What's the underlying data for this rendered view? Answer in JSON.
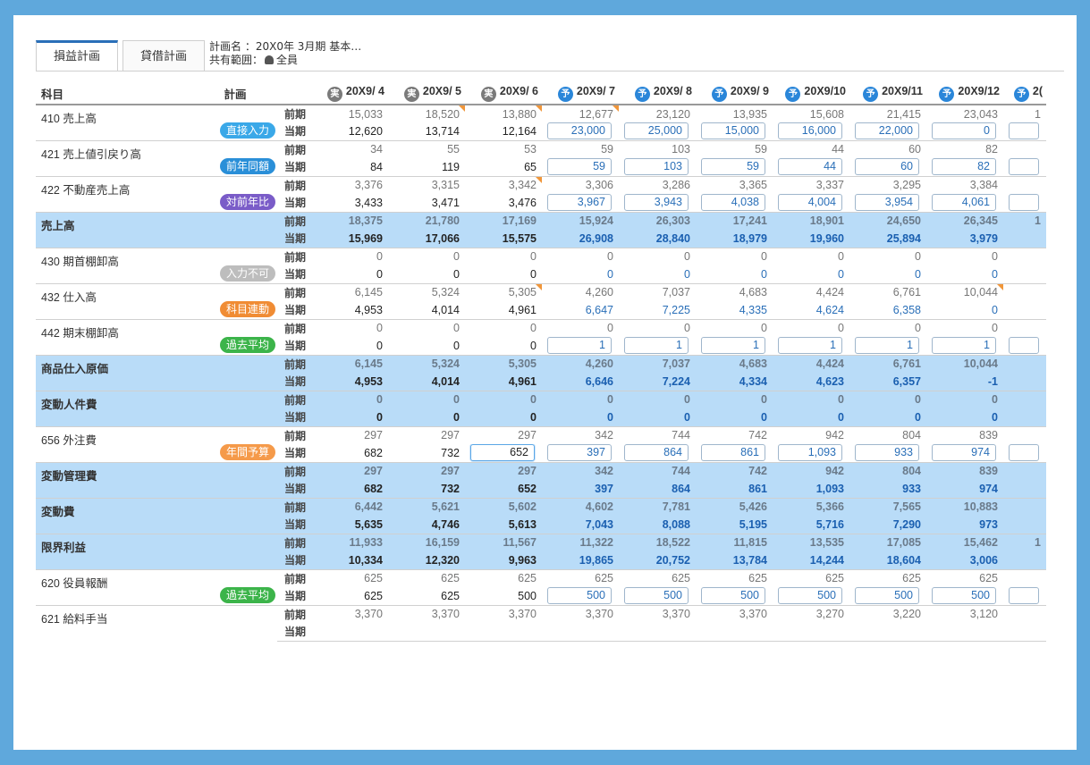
{
  "tabs": [
    {
      "label": "損益計画",
      "active": true
    },
    {
      "label": "貸借計画",
      "active": false
    }
  ],
  "plan": {
    "name_label": "計画名",
    "name_value": "：20X0年 3月期 基本…",
    "scope_label": "共有範囲：",
    "scope_value": "全員"
  },
  "headers": {
    "subject": "科目",
    "plan": "計画",
    "months": [
      {
        "badge": "実",
        "label": "20X9/ 4",
        "type": "actual"
      },
      {
        "badge": "実",
        "label": "20X9/ 5",
        "type": "actual"
      },
      {
        "badge": "実",
        "label": "20X9/ 6",
        "type": "actual"
      },
      {
        "badge": "予",
        "label": "20X9/ 7",
        "type": "forecast"
      },
      {
        "badge": "予",
        "label": "20X9/ 8",
        "type": "forecast"
      },
      {
        "badge": "予",
        "label": "20X9/ 9",
        "type": "forecast"
      },
      {
        "badge": "予",
        "label": "20X9/10",
        "type": "forecast"
      },
      {
        "badge": "予",
        "label": "20X9/11",
        "type": "forecast"
      },
      {
        "badge": "予",
        "label": "20X9/12",
        "type": "forecast"
      },
      {
        "badge": "予",
        "label": "2(",
        "type": "forecast"
      }
    ]
  },
  "periods": {
    "prev": "前期",
    "cur": "当期"
  },
  "colors": {
    "direct": "#3aa8e8",
    "prevyear": "#2a8fd8",
    "yoy": "#7a5cc8",
    "disabled": "#bdbdbd",
    "linked": "#f08c34",
    "avg": "#3cb44a",
    "annual": "#f59a4a"
  },
  "rows": [
    {
      "subject": "410 売上高",
      "pill": "直接入力",
      "pill_color": "direct",
      "sum": false,
      "prev": [
        "15,033",
        "18,520",
        "13,880",
        "12,677",
        "23,120",
        "13,935",
        "15,608",
        "21,415",
        "23,043",
        "1"
      ],
      "cur": [
        "12,620",
        "13,714",
        "12,164",
        "23,000",
        "25,000",
        "15,000",
        "16,000",
        "22,000",
        "0",
        ""
      ],
      "inputs": true,
      "prev_flags": [
        1,
        2,
        3
      ],
      "cur_flags": []
    },
    {
      "subject": "421 売上値引戻り高",
      "pill": "前年同額",
      "pill_color": "prevyear",
      "sum": false,
      "prev": [
        "34",
        "55",
        "53",
        "59",
        "103",
        "59",
        "44",
        "60",
        "82",
        ""
      ],
      "cur": [
        "84",
        "119",
        "65",
        "59",
        "103",
        "59",
        "44",
        "60",
        "82",
        ""
      ],
      "inputs": true,
      "prev_flags": [],
      "cur_flags": []
    },
    {
      "subject": "422 不動産売上高",
      "pill": "対前年比",
      "pill_color": "yoy",
      "sum": false,
      "prev": [
        "3,376",
        "3,315",
        "3,342",
        "3,306",
        "3,286",
        "3,365",
        "3,337",
        "3,295",
        "3,384",
        ""
      ],
      "cur": [
        "3,433",
        "3,471",
        "3,476",
        "3,967",
        "3,943",
        "4,038",
        "4,004",
        "3,954",
        "4,061",
        ""
      ],
      "inputs": true,
      "prev_flags": [
        2
      ],
      "cur_flags": []
    },
    {
      "subject": "売上高",
      "pill": "",
      "pill_color": "",
      "sum": true,
      "prev": [
        "18,375",
        "21,780",
        "17,169",
        "15,924",
        "26,303",
        "17,241",
        "18,901",
        "24,650",
        "26,345",
        "1"
      ],
      "cur": [
        "15,969",
        "17,066",
        "15,575",
        "26,908",
        "28,840",
        "18,979",
        "19,960",
        "25,894",
        "3,979",
        ""
      ],
      "inputs": false,
      "prev_flags": [],
      "cur_flags": []
    },
    {
      "subject": "430 期首棚卸高",
      "pill": "入力不可",
      "pill_color": "disabled",
      "sum": false,
      "prev": [
        "0",
        "0",
        "0",
        "0",
        "0",
        "0",
        "0",
        "0",
        "0",
        ""
      ],
      "cur": [
        "0",
        "0",
        "0",
        "0",
        "0",
        "0",
        "0",
        "0",
        "0",
        ""
      ],
      "inputs": false,
      "prev_flags": [],
      "cur_flags": []
    },
    {
      "subject": "432 仕入高",
      "pill": "科目連動",
      "pill_color": "linked",
      "sum": false,
      "prev": [
        "6,145",
        "5,324",
        "5,305",
        "4,260",
        "7,037",
        "4,683",
        "4,424",
        "6,761",
        "10,044",
        ""
      ],
      "cur": [
        "4,953",
        "4,014",
        "4,961",
        "6,647",
        "7,225",
        "4,335",
        "4,624",
        "6,358",
        "0",
        ""
      ],
      "inputs": false,
      "prev_flags": [
        2,
        8
      ],
      "cur_flags": []
    },
    {
      "subject": "442 期末棚卸高",
      "pill": "過去平均",
      "pill_color": "avg",
      "sum": false,
      "prev": [
        "0",
        "0",
        "0",
        "0",
        "0",
        "0",
        "0",
        "0",
        "0",
        ""
      ],
      "cur": [
        "0",
        "0",
        "0",
        "1",
        "1",
        "1",
        "1",
        "1",
        "1",
        ""
      ],
      "inputs": true,
      "prev_flags": [],
      "cur_flags": []
    },
    {
      "subject": "商品仕入原価",
      "pill": "",
      "pill_color": "",
      "sum": true,
      "prev": [
        "6,145",
        "5,324",
        "5,305",
        "4,260",
        "7,037",
        "4,683",
        "4,424",
        "6,761",
        "10,044",
        ""
      ],
      "cur": [
        "4,953",
        "4,014",
        "4,961",
        "6,646",
        "7,224",
        "4,334",
        "4,623",
        "6,357",
        "-1",
        ""
      ],
      "inputs": false,
      "prev_flags": [],
      "cur_flags": []
    },
    {
      "subject": "変動人件費",
      "pill": "",
      "pill_color": "",
      "sum": true,
      "prev": [
        "0",
        "0",
        "0",
        "0",
        "0",
        "0",
        "0",
        "0",
        "0",
        ""
      ],
      "cur": [
        "0",
        "0",
        "0",
        "0",
        "0",
        "0",
        "0",
        "0",
        "0",
        ""
      ],
      "inputs": false,
      "prev_flags": [],
      "cur_flags": []
    },
    {
      "subject": "656 外注費",
      "pill": "年間予算",
      "pill_color": "annual",
      "sum": false,
      "prev": [
        "297",
        "297",
        "297",
        "342",
        "744",
        "742",
        "942",
        "804",
        "839",
        ""
      ],
      "cur": [
        "682",
        "732",
        "652",
        "397",
        "864",
        "861",
        "1,093",
        "933",
        "974",
        ""
      ],
      "inputs": true,
      "selected": 2,
      "prev_flags": [],
      "cur_flags": []
    },
    {
      "subject": "変動管理費",
      "pill": "",
      "pill_color": "",
      "sum": true,
      "prev": [
        "297",
        "297",
        "297",
        "342",
        "744",
        "742",
        "942",
        "804",
        "839",
        ""
      ],
      "cur": [
        "682",
        "732",
        "652",
        "397",
        "864",
        "861",
        "1,093",
        "933",
        "974",
        ""
      ],
      "inputs": false,
      "prev_flags": [],
      "cur_flags": []
    },
    {
      "subject": "変動費",
      "pill": "",
      "pill_color": "",
      "sum": true,
      "prev": [
        "6,442",
        "5,621",
        "5,602",
        "4,602",
        "7,781",
        "5,426",
        "5,366",
        "7,565",
        "10,883",
        ""
      ],
      "cur": [
        "5,635",
        "4,746",
        "5,613",
        "7,043",
        "8,088",
        "5,195",
        "5,716",
        "7,290",
        "973",
        ""
      ],
      "inputs": false,
      "prev_flags": [],
      "cur_flags": []
    },
    {
      "subject": "限界利益",
      "pill": "",
      "pill_color": "",
      "sum": true,
      "prev": [
        "11,933",
        "16,159",
        "11,567",
        "11,322",
        "18,522",
        "11,815",
        "13,535",
        "17,085",
        "15,462",
        "1"
      ],
      "cur": [
        "10,334",
        "12,320",
        "9,963",
        "19,865",
        "20,752",
        "13,784",
        "14,244",
        "18,604",
        "3,006",
        ""
      ],
      "inputs": false,
      "prev_flags": [],
      "cur_flags": []
    },
    {
      "subject": "620 役員報酬",
      "pill": "過去平均",
      "pill_color": "avg",
      "sum": false,
      "prev": [
        "625",
        "625",
        "625",
        "625",
        "625",
        "625",
        "625",
        "625",
        "625",
        ""
      ],
      "cur": [
        "625",
        "625",
        "500",
        "500",
        "500",
        "500",
        "500",
        "500",
        "500",
        ""
      ],
      "inputs": true,
      "prev_flags": [],
      "cur_flags": []
    },
    {
      "subject": "621 給料手当",
      "pill": "",
      "pill_color": "",
      "sum": false,
      "prev": [
        "3,370",
        "3,370",
        "3,370",
        "3,370",
        "3,370",
        "3,370",
        "3,270",
        "3,220",
        "3,120",
        ""
      ],
      "cur": [
        "",
        "",
        "",
        "",
        "",
        "",
        "",
        "",
        "",
        ""
      ],
      "inputs": false,
      "prev_flags": [],
      "cur_flags": []
    }
  ]
}
